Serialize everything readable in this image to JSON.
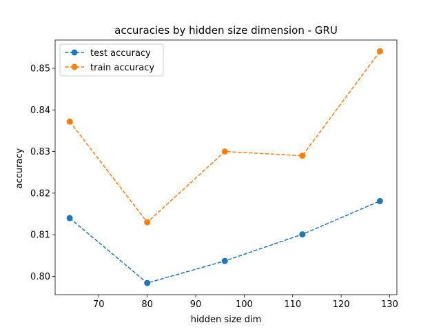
{
  "chart_data": {
    "type": "line",
    "title": "accuracies by hidden size dimension - GRU",
    "xlabel": "hidden size dim",
    "ylabel": "accuracy",
    "xlim": [
      61,
      131.5
    ],
    "ylim": [
      0.7956,
      0.8568
    ],
    "xticks": [
      70,
      80,
      90,
      100,
      110,
      120,
      130
    ],
    "yticks": [
      0.8,
      0.81,
      0.82,
      0.83,
      0.84,
      0.85
    ],
    "xtick_labels": [
      "70",
      "80",
      "90",
      "100",
      "110",
      "120",
      "130"
    ],
    "ytick_labels": [
      "0.80",
      "0.81",
      "0.82",
      "0.83",
      "0.84",
      "0.85"
    ],
    "grid": false,
    "legend_position": "upper-left",
    "x": [
      64,
      80,
      96,
      112,
      128
    ],
    "series": [
      {
        "name": "test accuracy",
        "color": "#1f77b4",
        "values": [
          0.814,
          0.7984,
          0.8037,
          0.8101,
          0.8181
        ]
      },
      {
        "name": "train accuracy",
        "color": "#ff7f0e",
        "values": [
          0.8372,
          0.813,
          0.83,
          0.829,
          0.8541
        ]
      }
    ]
  }
}
